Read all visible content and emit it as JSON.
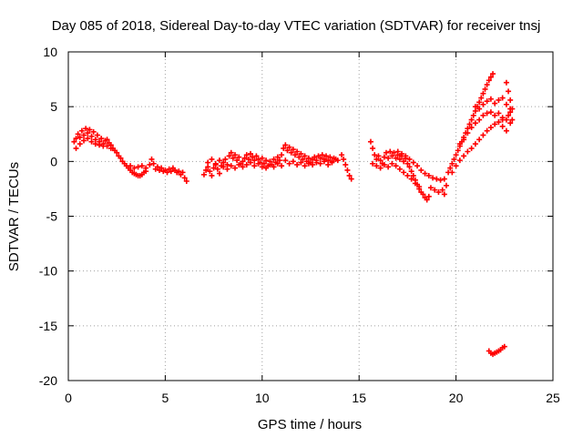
{
  "chart_data": {
    "type": "scatter",
    "title": "Day 085 of 2018, Sidereal Day-to-day VTEC variation (SDTVAR) for receiver tnsj",
    "xlabel": "GPS time / hours",
    "ylabel": "SDTVAR / TECUs",
    "xlim": [
      0,
      25
    ],
    "ylim": [
      -20,
      10
    ],
    "x_ticks": [
      0,
      5,
      10,
      15,
      20,
      25
    ],
    "y_ticks": [
      -20,
      -15,
      -10,
      -5,
      0,
      5,
      10
    ],
    "grid": true,
    "marker": "+",
    "series_color": "#ff0000",
    "series": [
      {
        "points": [
          [
            0.3,
            1.8
          ],
          [
            0.4,
            2.1
          ],
          [
            0.5,
            2.5
          ],
          [
            0.6,
            2.2
          ],
          [
            0.7,
            2.8
          ],
          [
            0.8,
            2.4
          ],
          [
            0.9,
            3.0
          ],
          [
            1.0,
            2.6
          ],
          [
            1.1,
            2.9
          ],
          [
            1.2,
            2.3
          ],
          [
            1.3,
            2.7
          ],
          [
            1.4,
            2.0
          ],
          [
            1.5,
            2.4
          ],
          [
            1.6,
            1.8
          ],
          [
            1.7,
            2.1
          ],
          [
            1.8,
            1.6
          ],
          [
            1.9,
            1.9
          ],
          [
            2.0,
            2.0
          ],
          [
            2.1,
            1.7
          ],
          [
            2.2,
            1.5
          ],
          [
            0.4,
            1.2
          ],
          [
            0.6,
            1.6
          ],
          [
            0.8,
            1.9
          ],
          [
            1.0,
            2.1
          ],
          [
            1.2,
            1.8
          ],
          [
            1.4,
            1.6
          ],
          [
            1.6,
            1.5
          ],
          [
            1.8,
            1.4
          ],
          [
            2.0,
            1.4
          ],
          [
            2.2,
            1.2
          ],
          [
            2.3,
            1.2
          ],
          [
            2.4,
            1.0
          ],
          [
            2.5,
            0.8
          ],
          [
            2.6,
            0.5
          ],
          [
            2.7,
            0.3
          ],
          [
            2.8,
            0.0
          ],
          [
            2.9,
            -0.2
          ],
          [
            3.0,
            -0.4
          ],
          [
            3.1,
            -0.6
          ],
          [
            3.2,
            -0.8
          ],
          [
            3.3,
            -1.0
          ],
          [
            3.4,
            -1.1
          ],
          [
            3.5,
            -1.2
          ],
          [
            3.6,
            -1.3
          ],
          [
            3.7,
            -1.3
          ],
          [
            3.8,
            -1.2
          ],
          [
            3.9,
            -1.0
          ],
          [
            4.0,
            -0.9
          ],
          [
            3.2,
            -0.4
          ],
          [
            3.4,
            -0.6
          ],
          [
            3.6,
            -0.5
          ],
          [
            3.8,
            -0.4
          ],
          [
            4.0,
            -0.6
          ],
          [
            4.2,
            -0.3
          ],
          [
            4.3,
            0.2
          ],
          [
            4.4,
            -0.2
          ],
          [
            4.5,
            -0.7
          ],
          [
            4.6,
            -0.5
          ],
          [
            4.7,
            -0.8
          ],
          [
            4.8,
            -0.6
          ],
          [
            4.9,
            -0.9
          ],
          [
            5.0,
            -0.8
          ],
          [
            5.1,
            -1.0
          ],
          [
            5.2,
            -0.7
          ],
          [
            5.3,
            -0.9
          ],
          [
            5.4,
            -0.6
          ],
          [
            5.5,
            -0.8
          ],
          [
            5.6,
            -1.0
          ],
          [
            5.7,
            -0.9
          ],
          [
            5.8,
            -1.2
          ],
          [
            5.9,
            -1.0
          ],
          [
            6.0,
            -1.5
          ],
          [
            6.1,
            -1.8
          ],
          [
            7.0,
            -1.2
          ],
          [
            7.1,
            -0.8
          ],
          [
            7.2,
            -0.5
          ],
          [
            7.3,
            -0.9
          ],
          [
            7.4,
            -1.3
          ],
          [
            7.5,
            -0.6
          ],
          [
            7.6,
            -0.2
          ],
          [
            7.7,
            -0.7
          ],
          [
            7.8,
            -1.1
          ],
          [
            7.9,
            -0.4
          ],
          [
            8.0,
            -0.1
          ],
          [
            8.1,
            0.2
          ],
          [
            8.2,
            -0.3
          ],
          [
            8.3,
            0.5
          ],
          [
            8.4,
            0.8
          ],
          [
            8.5,
            0.3
          ],
          [
            8.6,
            0.6
          ],
          [
            8.7,
            0.1
          ],
          [
            8.8,
            0.4
          ],
          [
            8.9,
            -0.2
          ],
          [
            9.0,
            0.0
          ],
          [
            7.2,
            -0.1
          ],
          [
            7.4,
            0.2
          ],
          [
            7.6,
            -0.3
          ],
          [
            7.8,
            0.1
          ],
          [
            8.0,
            -0.5
          ],
          [
            8.2,
            -0.7
          ],
          [
            8.4,
            -0.4
          ],
          [
            8.6,
            -0.6
          ],
          [
            8.8,
            -0.3
          ],
          [
            9.0,
            -0.5
          ],
          [
            9.1,
            0.3
          ],
          [
            9.2,
            0.6
          ],
          [
            9.3,
            0.2
          ],
          [
            9.4,
            0.7
          ],
          [
            9.5,
            0.4
          ],
          [
            9.6,
            0.1
          ],
          [
            9.7,
            0.5
          ],
          [
            9.8,
            0.2
          ],
          [
            9.9,
            -0.1
          ],
          [
            10.0,
            0.3
          ],
          [
            10.1,
            -0.2
          ],
          [
            10.2,
            0.1
          ],
          [
            10.3,
            -0.4
          ],
          [
            10.4,
            0.0
          ],
          [
            10.5,
            -0.3
          ],
          [
            10.6,
            0.2
          ],
          [
            10.7,
            -0.1
          ],
          [
            10.8,
            0.4
          ],
          [
            10.9,
            0.1
          ],
          [
            11.0,
            0.6
          ],
          [
            9.2,
            -0.3
          ],
          [
            9.4,
            -0.1
          ],
          [
            9.6,
            -0.4
          ],
          [
            9.8,
            -0.2
          ],
          [
            10.0,
            -0.5
          ],
          [
            10.2,
            -0.6
          ],
          [
            10.4,
            -0.3
          ],
          [
            10.6,
            -0.5
          ],
          [
            10.8,
            -0.2
          ],
          [
            11.0,
            -0.4
          ],
          [
            11.1,
            1.2
          ],
          [
            11.2,
            1.5
          ],
          [
            11.3,
            1.0
          ],
          [
            11.4,
            1.3
          ],
          [
            11.5,
            0.8
          ],
          [
            11.6,
            1.1
          ],
          [
            11.7,
            0.6
          ],
          [
            11.8,
            0.9
          ],
          [
            11.9,
            0.4
          ],
          [
            12.0,
            0.7
          ],
          [
            12.1,
            0.2
          ],
          [
            12.2,
            0.5
          ],
          [
            12.3,
            0.0
          ],
          [
            12.4,
            0.3
          ],
          [
            12.5,
            -0.1
          ],
          [
            11.2,
            0.1
          ],
          [
            11.4,
            -0.2
          ],
          [
            11.6,
            0.0
          ],
          [
            11.8,
            -0.3
          ],
          [
            12.0,
            -0.1
          ],
          [
            12.2,
            -0.4
          ],
          [
            12.4,
            -0.2
          ],
          [
            12.6,
            0.2
          ],
          [
            12.7,
            0.4
          ],
          [
            12.8,
            0.1
          ],
          [
            12.9,
            0.5
          ],
          [
            13.0,
            0.3
          ],
          [
            13.1,
            0.6
          ],
          [
            13.2,
            0.2
          ],
          [
            13.3,
            0.5
          ],
          [
            13.4,
            0.1
          ],
          [
            13.5,
            0.4
          ],
          [
            13.6,
            0.0
          ],
          [
            13.7,
            0.3
          ],
          [
            13.8,
            0.2
          ],
          [
            13.9,
            0.1
          ],
          [
            12.6,
            -0.3
          ],
          [
            12.8,
            -0.1
          ],
          [
            13.0,
            -0.2
          ],
          [
            13.2,
            0.0
          ],
          [
            13.4,
            -0.3
          ],
          [
            13.6,
            -0.1
          ],
          [
            14.1,
            0.6
          ],
          [
            14.2,
            0.2
          ],
          [
            14.3,
            -0.3
          ],
          [
            14.4,
            -0.8
          ],
          [
            14.5,
            -1.3
          ],
          [
            14.6,
            -1.6
          ],
          [
            15.6,
            1.8
          ],
          [
            15.7,
            1.2
          ],
          [
            15.8,
            0.6
          ],
          [
            15.9,
            0.2
          ],
          [
            16.0,
            0.5
          ],
          [
            16.1,
            0.1
          ],
          [
            16.2,
            -0.2
          ],
          [
            16.3,
            0.4
          ],
          [
            16.4,
            0.8
          ],
          [
            16.5,
            0.3
          ],
          [
            16.6,
            0.9
          ],
          [
            16.7,
            0.5
          ],
          [
            16.8,
            0.8
          ],
          [
            16.9,
            0.3
          ],
          [
            17.0,
            0.6
          ],
          [
            17.1,
            0.2
          ],
          [
            17.2,
            0.5
          ],
          [
            17.3,
            0.0
          ],
          [
            17.4,
            0.3
          ],
          [
            17.5,
            -0.2
          ],
          [
            17.6,
            -0.5
          ],
          [
            17.7,
            -0.9
          ],
          [
            17.8,
            -1.3
          ],
          [
            17.9,
            -1.7
          ],
          [
            18.0,
            -2.1
          ],
          [
            18.1,
            -2.5
          ],
          [
            18.2,
            -2.8
          ],
          [
            18.3,
            -3.0
          ],
          [
            18.4,
            -3.3
          ],
          [
            18.5,
            -3.5
          ],
          [
            18.6,
            -3.2
          ],
          [
            15.7,
            -0.2
          ],
          [
            15.9,
            -0.4
          ],
          [
            16.1,
            -0.6
          ],
          [
            16.3,
            -0.3
          ],
          [
            16.5,
            -0.5
          ],
          [
            16.7,
            -0.2
          ],
          [
            16.9,
            -0.4
          ],
          [
            17.1,
            -0.7
          ],
          [
            17.3,
            -1.0
          ],
          [
            17.5,
            -1.3
          ],
          [
            17.7,
            -1.6
          ],
          [
            17.9,
            -2.0
          ],
          [
            18.1,
            -2.3
          ],
          [
            17.0,
            0.9
          ],
          [
            17.2,
            0.7
          ],
          [
            17.4,
            0.5
          ],
          [
            17.6,
            0.2
          ],
          [
            17.8,
            -0.1
          ],
          [
            18.0,
            -0.4
          ],
          [
            18.2,
            -0.8
          ],
          [
            18.4,
            -1.1
          ],
          [
            18.6,
            -1.3
          ],
          [
            18.8,
            -1.5
          ],
          [
            19.0,
            -1.6
          ],
          [
            19.2,
            -1.7
          ],
          [
            19.4,
            -1.6
          ],
          [
            18.7,
            -2.4
          ],
          [
            18.9,
            -2.6
          ],
          [
            19.1,
            -2.8
          ],
          [
            19.3,
            -2.6
          ],
          [
            19.4,
            -3.0
          ],
          [
            19.5,
            -2.2
          ],
          [
            19.6,
            -1.0
          ],
          [
            19.7,
            -0.6
          ],
          [
            19.8,
            -0.2
          ],
          [
            19.9,
            0.2
          ],
          [
            20.0,
            0.6
          ],
          [
            20.1,
            1.0
          ],
          [
            20.2,
            1.4
          ],
          [
            20.3,
            1.8
          ],
          [
            20.4,
            2.2
          ],
          [
            20.5,
            2.6
          ],
          [
            20.6,
            3.0
          ],
          [
            20.7,
            3.4
          ],
          [
            20.8,
            3.8
          ],
          [
            20.9,
            4.2
          ],
          [
            21.0,
            4.6
          ],
          [
            21.1,
            5.0
          ],
          [
            21.2,
            5.4
          ],
          [
            21.3,
            5.8
          ],
          [
            21.4,
            6.2
          ],
          [
            21.5,
            6.6
          ],
          [
            21.6,
            7.0
          ],
          [
            21.7,
            7.4
          ],
          [
            21.8,
            7.7
          ],
          [
            21.9,
            8.0
          ],
          [
            19.8,
            -1.0
          ],
          [
            20.0,
            -0.4
          ],
          [
            20.2,
            0.1
          ],
          [
            20.4,
            0.5
          ],
          [
            20.6,
            0.9
          ],
          [
            20.8,
            1.2
          ],
          [
            21.0,
            1.6
          ],
          [
            21.2,
            2.0
          ],
          [
            21.4,
            2.4
          ],
          [
            21.6,
            2.8
          ],
          [
            21.8,
            3.1
          ],
          [
            22.0,
            3.4
          ],
          [
            22.2,
            3.6
          ],
          [
            22.4,
            3.8
          ],
          [
            20.2,
            1.6
          ],
          [
            20.4,
            2.0
          ],
          [
            20.6,
            2.6
          ],
          [
            20.8,
            3.1
          ],
          [
            21.0,
            3.5
          ],
          [
            21.2,
            3.8
          ],
          [
            21.4,
            4.2
          ],
          [
            21.6,
            4.4
          ],
          [
            21.8,
            4.5
          ],
          [
            22.0,
            4.2
          ],
          [
            22.2,
            4.4
          ],
          [
            22.4,
            4.0
          ],
          [
            22.6,
            3.8
          ],
          [
            22.8,
            3.5
          ],
          [
            21.0,
            5.0
          ],
          [
            21.2,
            4.8
          ],
          [
            21.4,
            5.2
          ],
          [
            21.6,
            5.5
          ],
          [
            21.8,
            5.7
          ],
          [
            22.0,
            5.3
          ],
          [
            22.2,
            5.6
          ],
          [
            22.4,
            5.8
          ],
          [
            22.6,
            5.2
          ],
          [
            22.8,
            4.8
          ],
          [
            22.6,
            7.2
          ],
          [
            22.7,
            6.4
          ],
          [
            22.8,
            5.6
          ],
          [
            22.9,
            4.8
          ],
          [
            22.9,
            3.8
          ],
          [
            22.6,
            2.8
          ],
          [
            22.4,
            3.2
          ],
          [
            22.7,
            4.2
          ],
          [
            22.8,
            4.5
          ],
          [
            21.7,
            -17.3
          ],
          [
            21.8,
            -17.5
          ],
          [
            21.9,
            -17.6
          ],
          [
            22.0,
            -17.5
          ],
          [
            22.1,
            -17.4
          ],
          [
            22.2,
            -17.3
          ],
          [
            22.3,
            -17.2
          ],
          [
            22.4,
            -17.0
          ],
          [
            22.5,
            -16.9
          ]
        ]
      }
    ]
  }
}
